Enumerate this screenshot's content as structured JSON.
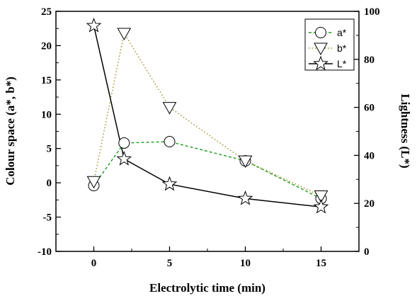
{
  "chart_data": {
    "type": "line",
    "xlabel": "Electrolytic time (min)",
    "ylabel": "Colour space (a*, b*)",
    "ylabel_right": "Lightness (L*)",
    "x_ticks": [
      "0",
      "5",
      "10",
      "15"
    ],
    "y_ticks": [
      "-10",
      "-5",
      "0",
      "5",
      "10",
      "15",
      "20",
      "25"
    ],
    "y_right_ticks": [
      "0",
      "20",
      "40",
      "60",
      "80",
      "100"
    ],
    "xlim": [
      -2.5,
      17.5
    ],
    "ylim": [
      -10,
      25
    ],
    "ylim_right": [
      0,
      100
    ],
    "grid": false,
    "legend_position": "top-right",
    "series": [
      {
        "name": "a*",
        "axis": "left",
        "marker": "circle",
        "line_style": "dashed",
        "color": "#1a9c1a",
        "x": [
          0,
          2,
          5,
          10,
          15
        ],
        "y": [
          -0.4,
          5.8,
          6.0,
          3.2,
          -2.3
        ]
      },
      {
        "name": "b*",
        "axis": "left",
        "marker": "triangle-down",
        "line_style": "dotted",
        "color": "#9a8a1a",
        "x": [
          0,
          2,
          5,
          10,
          15
        ],
        "y": [
          0.2,
          21.8,
          11.0,
          3.2,
          -1.9
        ]
      },
      {
        "name": "L*",
        "axis": "right",
        "marker": "star",
        "line_style": "solid",
        "color": "#000000",
        "x": [
          0,
          2,
          5,
          10,
          15
        ],
        "y": [
          94,
          38.5,
          28,
          22,
          18.5
        ]
      }
    ]
  }
}
